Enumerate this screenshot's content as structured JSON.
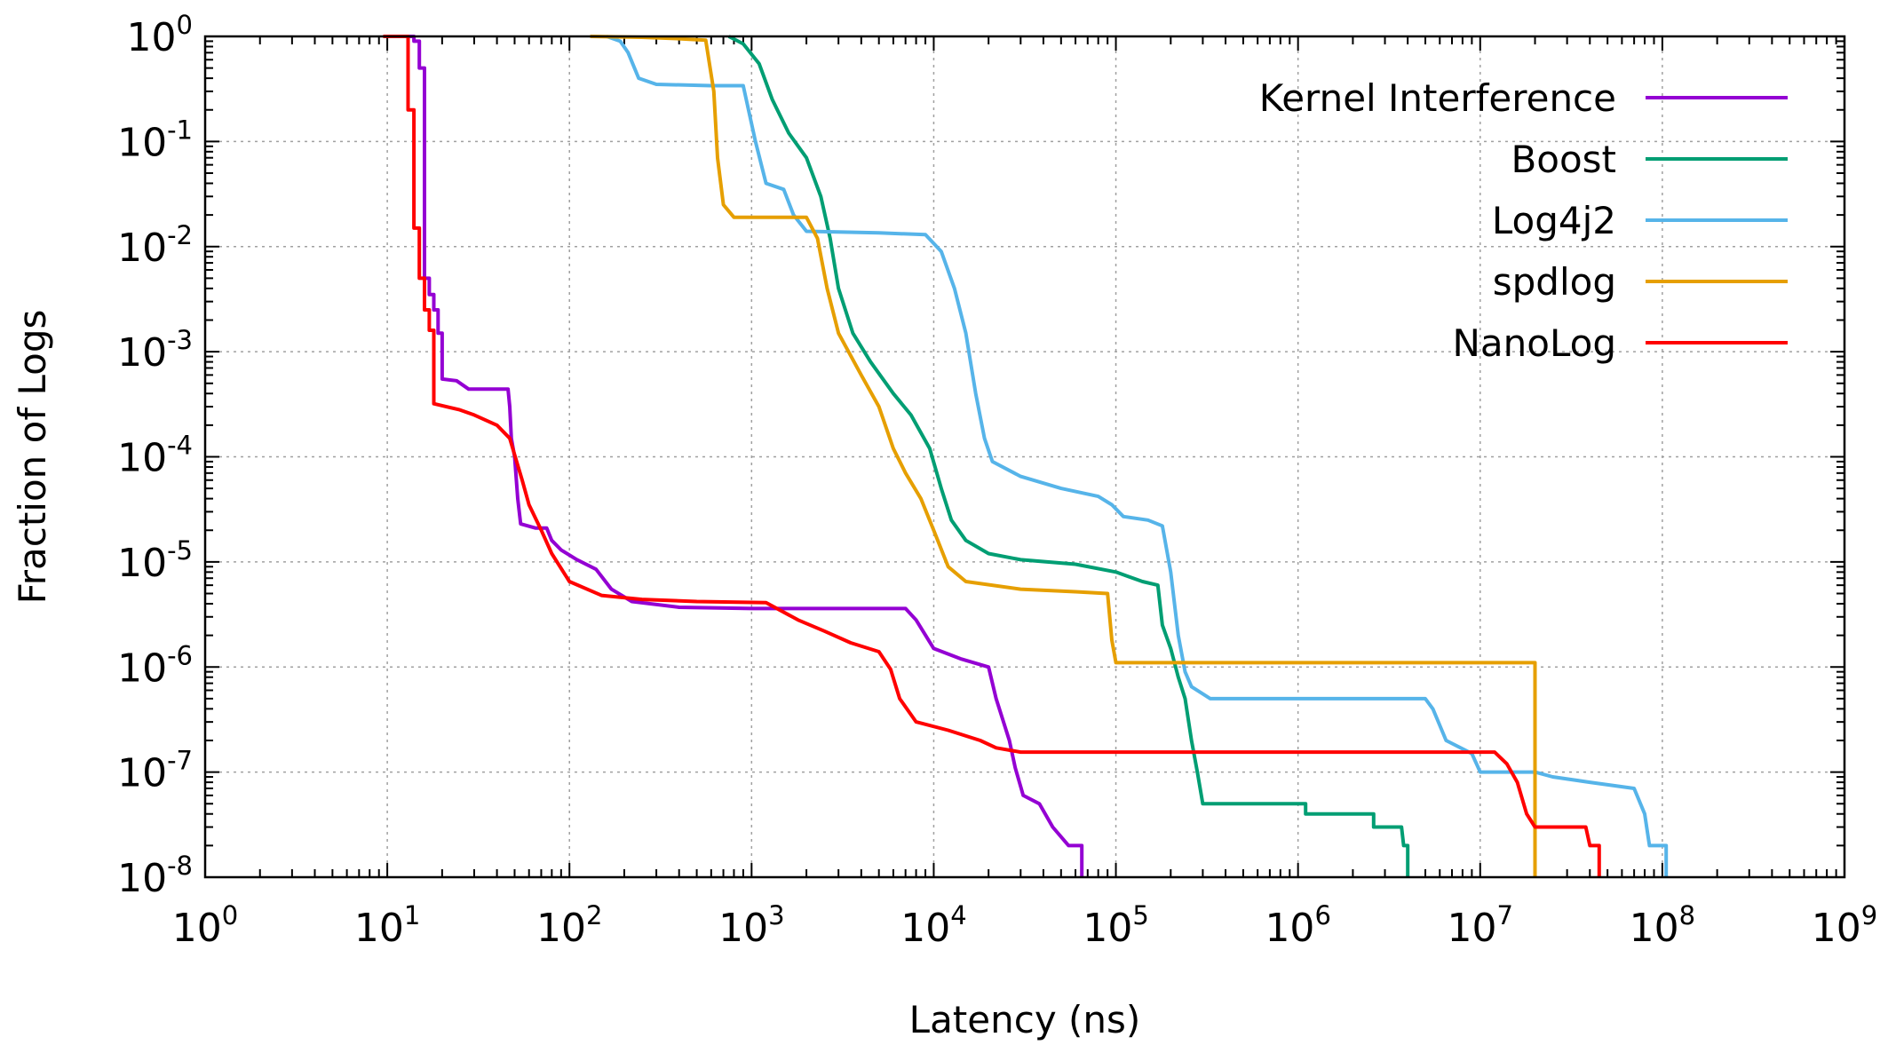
{
  "chart_data": {
    "type": "line",
    "title": "",
    "xlabel": "Latency (ns)",
    "ylabel": "Fraction of Logs",
    "xscale": "log",
    "yscale": "log",
    "xlim": [
      1,
      1000000000
    ],
    "ylim": [
      1e-08,
      1
    ],
    "grid": true,
    "legend_position": "top-right",
    "x_tick_labels": [
      {
        "base": "10",
        "exp": "0"
      },
      {
        "base": "10",
        "exp": "1"
      },
      {
        "base": "10",
        "exp": "2"
      },
      {
        "base": "10",
        "exp": "3"
      },
      {
        "base": "10",
        "exp": "4"
      },
      {
        "base": "10",
        "exp": "5"
      },
      {
        "base": "10",
        "exp": "6"
      },
      {
        "base": "10",
        "exp": "7"
      },
      {
        "base": "10",
        "exp": "8"
      },
      {
        "base": "10",
        "exp": "9"
      }
    ],
    "y_tick_labels": [
      {
        "base": "10",
        "exp": "0"
      },
      {
        "base": "10",
        "exp": "-1"
      },
      {
        "base": "10",
        "exp": "-2"
      },
      {
        "base": "10",
        "exp": "-3"
      },
      {
        "base": "10",
        "exp": "-4"
      },
      {
        "base": "10",
        "exp": "-5"
      },
      {
        "base": "10",
        "exp": "-6"
      },
      {
        "base": "10",
        "exp": "-7"
      },
      {
        "base": "10",
        "exp": "-8"
      }
    ],
    "series": [
      {
        "name": "Kernel Interference",
        "color": "#9400d3",
        "points": [
          [
            9.5,
            1
          ],
          [
            14,
            1
          ],
          [
            14,
            0.9
          ],
          [
            15,
            0.9
          ],
          [
            15,
            0.5
          ],
          [
            16,
            0.5
          ],
          [
            16,
            0.005
          ],
          [
            17,
            0.005
          ],
          [
            17,
            0.0035
          ],
          [
            18,
            0.0035
          ],
          [
            18,
            0.0025
          ],
          [
            19,
            0.0025
          ],
          [
            19,
            0.0015
          ],
          [
            20,
            0.0015
          ],
          [
            20,
            0.00055
          ],
          [
            24,
            0.00053
          ],
          [
            28,
            0.00044
          ],
          [
            46,
            0.00044
          ],
          [
            47,
            0.0003
          ],
          [
            48,
            0.00015
          ],
          [
            50,
            0.0001
          ],
          [
            52,
            4e-05
          ],
          [
            54,
            2.3e-05
          ],
          [
            65,
            2.1e-05
          ],
          [
            75,
            2.1e-05
          ],
          [
            80,
            1.6e-05
          ],
          [
            90,
            1.3e-05
          ],
          [
            110,
            1.05e-05
          ],
          [
            140,
            8.5e-06
          ],
          [
            170,
            5.5e-06
          ],
          [
            220,
            4.2e-06
          ],
          [
            400,
            3.7e-06
          ],
          [
            1000,
            3.6e-06
          ],
          [
            3000,
            3.6e-06
          ],
          [
            7000,
            3.6e-06
          ],
          [
            8000,
            2.8e-06
          ],
          [
            10000,
            1.5e-06
          ],
          [
            14000,
            1.2e-06
          ],
          [
            20000,
            1e-06
          ],
          [
            22000,
            5e-07
          ],
          [
            26000,
            2e-07
          ],
          [
            28000,
            1.1e-07
          ],
          [
            31000,
            6e-08
          ],
          [
            38000,
            5e-08
          ],
          [
            45000,
            3e-08
          ],
          [
            55000,
            2e-08
          ],
          [
            65000,
            2e-08
          ],
          [
            65000,
            1e-08
          ]
        ]
      },
      {
        "name": "Boost",
        "color": "#009e73",
        "points": [
          [
            750,
            1
          ],
          [
            900,
            0.85
          ],
          [
            1100,
            0.55
          ],
          [
            1300,
            0.25
          ],
          [
            1600,
            0.12
          ],
          [
            2000,
            0.07
          ],
          [
            2400,
            0.03
          ],
          [
            2700,
            0.012
          ],
          [
            3000,
            0.004
          ],
          [
            3600,
            0.0015
          ],
          [
            4500,
            0.0008
          ],
          [
            6000,
            0.0004
          ],
          [
            7500,
            0.00025
          ],
          [
            9500,
            0.00012
          ],
          [
            11000,
            5e-05
          ],
          [
            12500,
            2.5e-05
          ],
          [
            15000,
            1.6e-05
          ],
          [
            20000,
            1.2e-05
          ],
          [
            30000,
            1.05e-05
          ],
          [
            60000,
            9.5e-06
          ],
          [
            100000,
            8e-06
          ],
          [
            140000,
            6.5e-06
          ],
          [
            170000,
            6e-06
          ],
          [
            180000,
            2.5e-06
          ],
          [
            200000,
            1.5e-06
          ],
          [
            220000,
            8e-07
          ],
          [
            240000,
            5e-07
          ],
          [
            260000,
            2e-07
          ],
          [
            280000,
            1e-07
          ],
          [
            300000,
            5e-08
          ],
          [
            1100000,
            5e-08
          ],
          [
            1100000,
            4e-08
          ],
          [
            2600000,
            4e-08
          ],
          [
            2600000,
            3e-08
          ],
          [
            3700000,
            3e-08
          ],
          [
            3800000,
            2e-08
          ],
          [
            4000000,
            2e-08
          ],
          [
            4000000,
            1e-08
          ]
        ]
      },
      {
        "name": "Log4j2",
        "color": "#56b4e9",
        "points": [
          [
            160,
            1
          ],
          [
            190,
            0.9
          ],
          [
            210,
            0.7
          ],
          [
            240,
            0.4
          ],
          [
            300,
            0.35
          ],
          [
            600,
            0.34
          ],
          [
            900,
            0.34
          ],
          [
            1050,
            0.1
          ],
          [
            1200,
            0.04
          ],
          [
            1500,
            0.035
          ],
          [
            1700,
            0.02
          ],
          [
            2000,
            0.014
          ],
          [
            5000,
            0.0135
          ],
          [
            9000,
            0.013
          ],
          [
            11000,
            0.009
          ],
          [
            13000,
            0.004
          ],
          [
            15000,
            0.0015
          ],
          [
            17000,
            0.0004
          ],
          [
            19000,
            0.00015
          ],
          [
            21000,
            9e-05
          ],
          [
            30000,
            6.5e-05
          ],
          [
            50000,
            5e-05
          ],
          [
            80000,
            4.2e-05
          ],
          [
            95000,
            3.5e-05
          ],
          [
            110000,
            2.7e-05
          ],
          [
            150000,
            2.5e-05
          ],
          [
            180000,
            2.2e-05
          ],
          [
            200000,
            8e-06
          ],
          [
            220000,
            2e-06
          ],
          [
            240000,
            9e-07
          ],
          [
            260000,
            6.5e-07
          ],
          [
            330000,
            5e-07
          ],
          [
            5000000,
            5e-07
          ],
          [
            5500000,
            4e-07
          ],
          [
            6500000,
            2e-07
          ],
          [
            9000000,
            1.5e-07
          ],
          [
            10000000,
            1e-07
          ],
          [
            20000000,
            1e-07
          ],
          [
            25000000,
            9e-08
          ],
          [
            40000000,
            8e-08
          ],
          [
            70000000,
            7e-08
          ],
          [
            80000000,
            4e-08
          ],
          [
            85000000,
            2e-08
          ],
          [
            105000000,
            2e-08
          ],
          [
            105000000,
            1e-08
          ]
        ]
      },
      {
        "name": "spdlog",
        "color": "#e69f00",
        "points": [
          [
            130,
            1
          ],
          [
            250,
            0.98
          ],
          [
            400,
            0.95
          ],
          [
            560,
            0.92
          ],
          [
            620,
            0.3
          ],
          [
            650,
            0.07
          ],
          [
            700,
            0.025
          ],
          [
            800,
            0.019
          ],
          [
            2000,
            0.019
          ],
          [
            2300,
            0.012
          ],
          [
            2600,
            0.004
          ],
          [
            3000,
            0.0015
          ],
          [
            4000,
            0.0006
          ],
          [
            5000,
            0.0003
          ],
          [
            6000,
            0.00012
          ],
          [
            7000,
            7e-05
          ],
          [
            8500,
            4e-05
          ],
          [
            10000,
            2e-05
          ],
          [
            12000,
            9e-06
          ],
          [
            15000,
            6.5e-06
          ],
          [
            30000,
            5.5e-06
          ],
          [
            60000,
            5.2e-06
          ],
          [
            90000,
            5e-06
          ],
          [
            95000,
            1.8e-06
          ],
          [
            100000,
            1.1e-06
          ],
          [
            110000,
            1.1e-06
          ],
          [
            20000000,
            1.1e-06
          ],
          [
            20000000,
            1e-08
          ]
        ]
      },
      {
        "name": "NanoLog",
        "color": "#ff0000",
        "points": [
          [
            9.5,
            1
          ],
          [
            13,
            1
          ],
          [
            13,
            0.2
          ],
          [
            14,
            0.2
          ],
          [
            14,
            0.015
          ],
          [
            15,
            0.015
          ],
          [
            15,
            0.005
          ],
          [
            16,
            0.005
          ],
          [
            16,
            0.0025
          ],
          [
            17,
            0.0025
          ],
          [
            17,
            0.0016
          ],
          [
            18,
            0.0016
          ],
          [
            18,
            0.00032
          ],
          [
            25,
            0.00028
          ],
          [
            30,
            0.00025
          ],
          [
            40,
            0.0002
          ],
          [
            47,
            0.00015
          ],
          [
            55,
            6e-05
          ],
          [
            60,
            3.5e-05
          ],
          [
            70,
            2e-05
          ],
          [
            80,
            1.2e-05
          ],
          [
            100,
            6.5e-06
          ],
          [
            150,
            4.8e-06
          ],
          [
            250,
            4.4e-06
          ],
          [
            500,
            4.2e-06
          ],
          [
            1200,
            4.1e-06
          ],
          [
            1800,
            2.8e-06
          ],
          [
            2500,
            2.2e-06
          ],
          [
            3500,
            1.7e-06
          ],
          [
            5000,
            1.4e-06
          ],
          [
            5800,
            9.5e-07
          ],
          [
            6500,
            5e-07
          ],
          [
            8000,
            3e-07
          ],
          [
            12000,
            2.5e-07
          ],
          [
            18000,
            2e-07
          ],
          [
            22000,
            1.7e-07
          ],
          [
            30000,
            1.55e-07
          ],
          [
            12000000,
            1.55e-07
          ],
          [
            14000000,
            1.2e-07
          ],
          [
            16000000,
            8e-08
          ],
          [
            18000000,
            4e-08
          ],
          [
            20000000,
            3e-08
          ],
          [
            38000000,
            3e-08
          ],
          [
            40000000,
            2e-08
          ],
          [
            45000000,
            2e-08
          ],
          [
            45000000,
            1e-08
          ]
        ]
      }
    ]
  }
}
